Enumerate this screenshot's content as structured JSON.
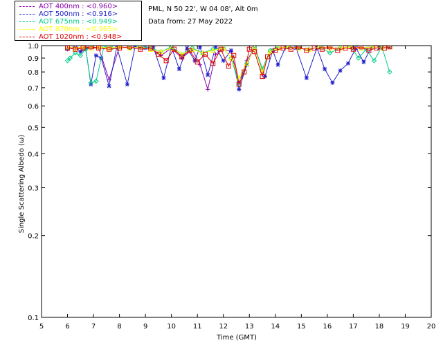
{
  "info": {
    "site": "PML, N 50 22', W 04 08', Alt 0m",
    "date": "Data from: 27 May 2022"
  },
  "legend": [
    {
      "label": "AOT  400nm : <0.960>",
      "color": "#8800aa"
    },
    {
      "label": "AOT  500nm : <0.916>",
      "color": "#2222cc"
    },
    {
      "label": "AOT  675nm : <0.949>",
      "color": "#00cc88"
    },
    {
      "label": "AOT  870nm : <0.965>",
      "color": "#ffff00"
    },
    {
      "label": "AOT 1020nm : <0.948>",
      "color": "#dd0000"
    }
  ],
  "chart_data": {
    "type": "line",
    "xlabel": "Time (GMT)",
    "ylabel": "Single Scattering Albedo (ω)",
    "xlim": [
      5,
      20
    ],
    "ylim": [
      0.1,
      1.0
    ],
    "yscale": "log",
    "xticks": [
      5,
      6,
      7,
      8,
      9,
      10,
      11,
      12,
      13,
      14,
      15,
      16,
      17,
      18,
      19,
      20
    ],
    "yticks": [
      {
        "v": 1.0,
        "label": "1.0"
      },
      {
        "v": 0.9,
        "label": "0.9"
      },
      {
        "v": 0.8,
        "label": "0.8"
      },
      {
        "v": 0.7,
        "label": "0.7"
      },
      {
        "v": 0.6,
        "label": "0.6"
      },
      {
        "v": 0.5,
        "label": "0.5"
      },
      {
        "v": 0.4,
        "label": "0.4"
      },
      {
        "v": 0.3,
        "label": "0.3"
      },
      {
        "v": 0.2,
        "label": "0.2"
      },
      {
        "v": 0.1,
        "label": "0.1"
      }
    ],
    "series": [
      {
        "name": "AOT  400nm",
        "color": "#8800aa",
        "marker": "plus",
        "x": [
          6.0,
          6.3,
          6.6,
          6.9,
          7.2,
          7.6,
          8.0,
          8.4,
          8.8,
          9.2,
          9.6,
          10.0,
          10.4,
          10.8,
          11.1,
          11.4,
          11.7,
          12.0,
          12.3,
          12.6,
          12.9,
          13.2,
          13.5,
          13.8,
          14.1,
          14.5,
          14.9,
          15.3,
          15.7,
          16.1,
          16.5,
          16.9,
          17.3,
          17.7,
          18.1,
          18.4
        ],
        "y": [
          0.98,
          0.99,
          0.97,
          0.98,
          0.98,
          0.75,
          0.99,
          0.98,
          0.99,
          0.98,
          0.92,
          0.98,
          0.9,
          0.97,
          0.85,
          0.69,
          0.93,
          0.97,
          0.95,
          0.73,
          0.88,
          0.98,
          0.8,
          0.95,
          0.98,
          0.99,
          0.98,
          0.97,
          0.99,
          0.98,
          0.98,
          0.99,
          0.98,
          0.99,
          0.98,
          0.99
        ]
      },
      {
        "name": "AOT  500nm",
        "color": "#2222cc",
        "marker": "star",
        "x": [
          6.0,
          6.3,
          6.5,
          6.7,
          6.9,
          7.1,
          7.3,
          7.6,
          7.9,
          8.3,
          8.6,
          9.0,
          9.3,
          9.7,
          10.0,
          10.3,
          10.6,
          10.9,
          11.1,
          11.4,
          11.7,
          12.0,
          12.3,
          12.6,
          12.9,
          13.2,
          13.6,
          13.9,
          14.1,
          14.4,
          14.8,
          15.2,
          15.6,
          15.9,
          16.2,
          16.5,
          16.8,
          17.1,
          17.4,
          17.7,
          18.0,
          18.4
        ],
        "y": [
          0.97,
          0.99,
          0.95,
          0.98,
          0.72,
          0.92,
          0.9,
          0.71,
          0.99,
          0.72,
          0.99,
          0.98,
          0.99,
          0.76,
          0.99,
          0.82,
          0.98,
          0.88,
          0.99,
          0.78,
          0.99,
          0.88,
          0.96,
          0.69,
          0.85,
          0.99,
          0.77,
          0.96,
          0.85,
          0.99,
          0.98,
          0.76,
          0.98,
          0.82,
          0.73,
          0.81,
          0.86,
          0.98,
          0.87,
          0.99,
          0.98,
          0.99
        ]
      },
      {
        "name": "AOT  675nm",
        "color": "#00cc88",
        "marker": "diamond",
        "x": [
          6.0,
          6.1,
          6.3,
          6.5,
          6.7,
          6.9,
          7.1,
          7.4,
          7.7,
          8.0,
          8.4,
          8.8,
          9.2,
          9.6,
          10.0,
          10.4,
          10.8,
          11.2,
          11.6,
          12.0,
          12.3,
          12.6,
          12.9,
          13.2,
          13.5,
          13.8,
          14.1,
          14.5,
          14.9,
          15.3,
          15.7,
          16.1,
          16.5,
          16.9,
          17.2,
          17.5,
          17.8,
          18.1,
          18.4
        ],
        "y": [
          0.88,
          0.9,
          0.94,
          0.92,
          0.97,
          0.73,
          0.74,
          0.99,
          0.98,
          0.99,
          0.98,
          0.99,
          0.98,
          0.95,
          0.99,
          0.93,
          0.98,
          0.94,
          0.97,
          0.98,
          0.9,
          0.72,
          0.86,
          0.98,
          0.82,
          0.96,
          0.98,
          0.99,
          0.98,
          0.97,
          0.99,
          0.94,
          0.98,
          0.99,
          0.9,
          0.97,
          0.88,
          0.99,
          0.8
        ]
      },
      {
        "name": "AOT  870nm",
        "color": "#ffff00",
        "marker": "triangle",
        "x": [
          6.0,
          6.3,
          6.6,
          6.9,
          7.2,
          7.6,
          8.0,
          8.4,
          8.8,
          9.2,
          9.6,
          10.0,
          10.4,
          10.8,
          11.2,
          11.6,
          12.0,
          12.3,
          12.6,
          12.9,
          13.2,
          13.5,
          13.8,
          14.1,
          14.5,
          14.9,
          15.3,
          15.7,
          16.1,
          16.5,
          16.9,
          17.3,
          17.7,
          18.1,
          18.4
        ],
        "y": [
          0.99,
          0.98,
          0.99,
          0.98,
          0.99,
          0.98,
          0.99,
          0.98,
          0.99,
          0.97,
          0.95,
          0.98,
          0.93,
          0.97,
          0.94,
          0.96,
          0.98,
          0.9,
          0.76,
          0.86,
          0.98,
          0.8,
          0.95,
          0.98,
          0.99,
          0.98,
          0.97,
          0.99,
          0.98,
          0.98,
          0.99,
          0.98,
          0.99,
          0.98,
          0.99
        ]
      },
      {
        "name": "AOT 1020nm",
        "color": "#dd0000",
        "marker": "square",
        "x": [
          6.0,
          6.3,
          6.6,
          6.9,
          7.2,
          7.6,
          8.0,
          8.4,
          8.8,
          9.2,
          9.5,
          9.8,
          10.1,
          10.4,
          10.7,
          11.0,
          11.3,
          11.6,
          11.9,
          12.2,
          12.4,
          12.6,
          12.8,
          13.0,
          13.2,
          13.5,
          13.7,
          14.0,
          14.3,
          14.6,
          14.9,
          15.2,
          15.5,
          15.8,
          16.1,
          16.4,
          16.7,
          17.0,
          17.3,
          17.6,
          17.9,
          18.2,
          18.4
        ],
        "y": [
          0.98,
          0.97,
          0.98,
          0.99,
          0.98,
          0.97,
          0.98,
          0.99,
          0.97,
          0.98,
          0.93,
          0.88,
          0.97,
          0.91,
          0.96,
          0.87,
          0.93,
          0.86,
          0.97,
          0.84,
          0.92,
          0.72,
          0.8,
          0.97,
          0.95,
          0.77,
          0.91,
          0.96,
          0.98,
          0.97,
          0.99,
          0.96,
          0.98,
          0.97,
          0.99,
          0.96,
          0.98,
          0.97,
          0.99,
          0.96,
          0.98,
          0.98,
          0.99
        ]
      }
    ]
  }
}
